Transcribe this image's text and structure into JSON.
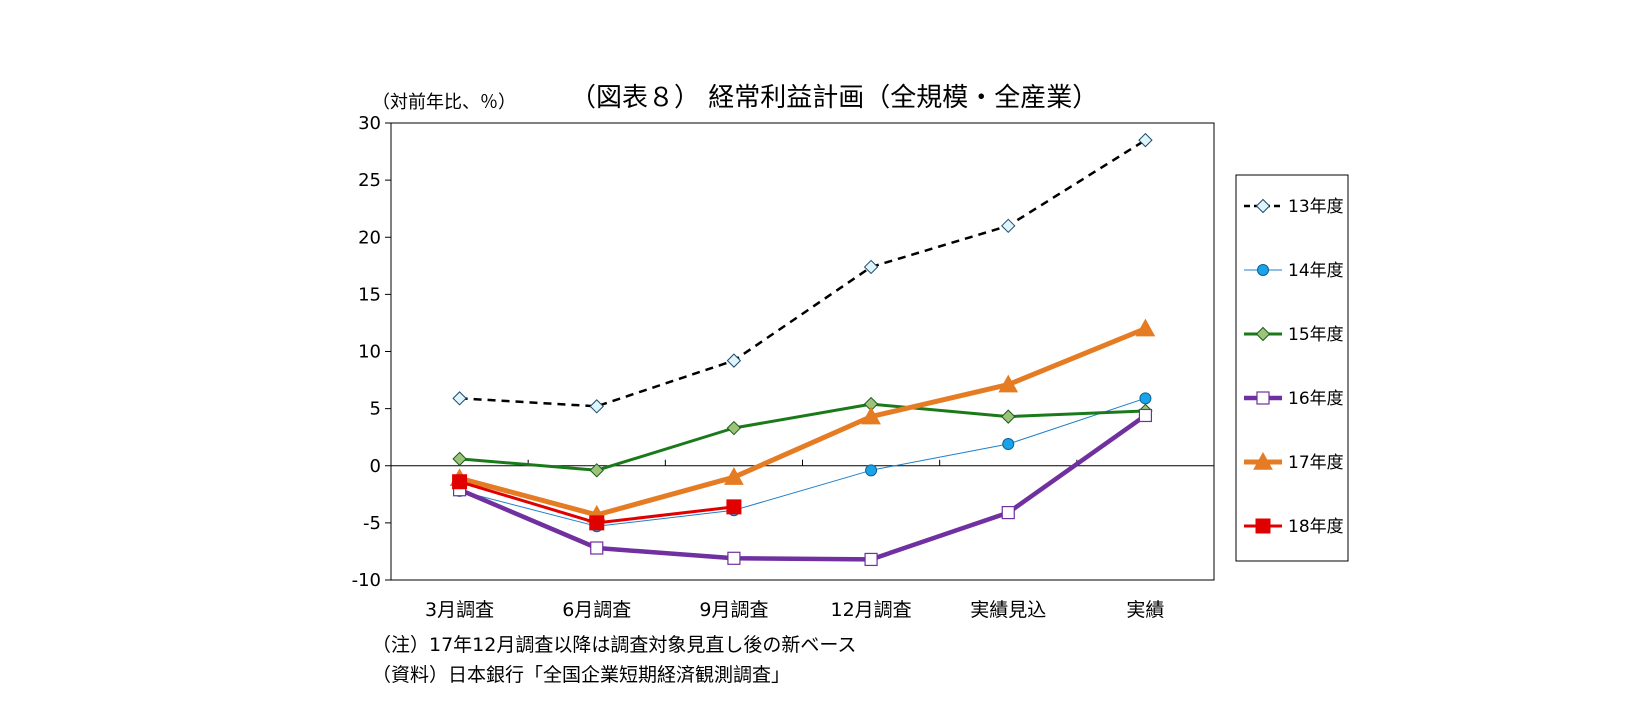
{
  "chart_data": {
    "type": "line",
    "title": "（図表８） 経常利益計画（全規模・全産業）",
    "ylabel": "（対前年比、％）",
    "xlabel": "",
    "categories": [
      "3月調査",
      "6月調査",
      "9月調査",
      "12月調査",
      "実績見込",
      "実績"
    ],
    "ylim": [
      -10,
      30
    ],
    "yticks": [
      -10,
      -5,
      0,
      5,
      10,
      15,
      20,
      25,
      30
    ],
    "grid": false,
    "legend_position": "right",
    "series": [
      {
        "name": "13年度",
        "values": [
          5.9,
          5.2,
          9.2,
          17.4,
          21.0,
          28.5
        ],
        "color": "#000000",
        "marker": "diamond-open",
        "dash": true,
        "width": 2.5
      },
      {
        "name": "14年度",
        "values": [
          -2.2,
          -5.3,
          -3.9,
          -0.4,
          1.9,
          5.9
        ],
        "color": "#1f7fc8",
        "marker": "circle",
        "dash": false,
        "width": 1
      },
      {
        "name": "15年度",
        "values": [
          0.6,
          -0.4,
          3.3,
          5.4,
          4.3,
          4.8
        ],
        "color": "#1a7a1a",
        "marker": "diamond",
        "dash": false,
        "width": 3
      },
      {
        "name": "16年度",
        "values": [
          -2.1,
          -7.2,
          -8.1,
          -8.2,
          -4.1,
          4.4
        ],
        "color": "#7030a0",
        "marker": "square-open",
        "dash": false,
        "width": 4.5
      },
      {
        "name": "17年度",
        "values": [
          -1.1,
          -4.3,
          -1.0,
          4.3,
          7.1,
          12.0
        ],
        "color": "#e57c24",
        "marker": "triangle",
        "dash": false,
        "width": 5
      },
      {
        "name": "18年度",
        "values": [
          -1.4,
          -5.0,
          -3.6,
          null,
          null,
          null
        ],
        "color": "#e00000",
        "marker": "square",
        "dash": false,
        "width": 3
      }
    ]
  },
  "notes": {
    "line1": "（注）17年12月調査以降は調査対象見直し後の新ベース",
    "line2": "（資料）日本銀行「全国企業短期経済観測調査」"
  }
}
